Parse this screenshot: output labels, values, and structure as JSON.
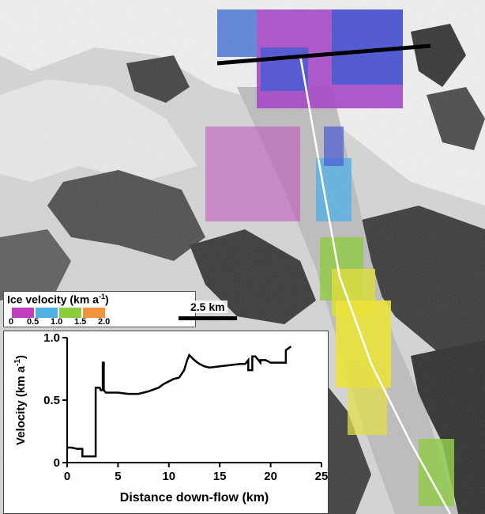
{
  "legend": {
    "title": "Ice velocity (km a",
    "title_sup": "-1",
    "title_end": ")",
    "colors": [
      "#c13fbf",
      "#4fb0e6",
      "#8dcc3b",
      "#f2933c"
    ],
    "ticks": [
      "0",
      "0.5",
      "1.0",
      "1.5",
      "2.0"
    ]
  },
  "scale_bar": {
    "label": "2.5 km"
  },
  "chart_data": {
    "type": "line",
    "xlabel": "Distance down-flow (km)",
    "ylabel": "Velocity (km a",
    "ylabel_sup": "-1",
    "ylabel_end": ")",
    "xlim": [
      0,
      25
    ],
    "ylim": [
      0,
      1.0
    ],
    "xticks": [
      0,
      5,
      10,
      15,
      20,
      25
    ],
    "yticks": [
      0,
      0.5,
      1.0
    ],
    "ytick_labels": [
      "0",
      "0.5",
      "1.0"
    ],
    "series": [
      {
        "x": [
          0,
          0.4,
          1.0,
          1.5,
          1.5,
          2.5,
          2.8,
          2.8,
          3.2,
          3.3,
          3.5,
          3.5,
          3.6,
          3.6,
          3.7,
          3.8,
          4.0,
          5.0,
          6.0,
          7.0,
          7.5,
          8.0,
          9.0,
          9.5,
          10.0,
          10.5,
          11.0,
          11.5,
          11.8,
          12.0,
          12.5,
          13.0,
          13.5,
          14.0,
          15.0,
          16.0,
          17.0,
          17.5,
          17.8,
          17.8,
          18.2,
          18.2,
          18.5,
          19.0,
          19.0,
          19.5,
          20.0,
          21.0,
          21.5,
          21.5,
          22.0
        ],
        "y": [
          0.12,
          0.12,
          0.11,
          0.11,
          0.05,
          0.05,
          0.05,
          0.6,
          0.6,
          0.58,
          0.58,
          0.8,
          0.8,
          0.58,
          0.57,
          0.56,
          0.56,
          0.56,
          0.55,
          0.55,
          0.56,
          0.57,
          0.6,
          0.63,
          0.65,
          0.67,
          0.68,
          0.74,
          0.82,
          0.86,
          0.82,
          0.79,
          0.77,
          0.76,
          0.77,
          0.78,
          0.79,
          0.79,
          0.82,
          0.74,
          0.74,
          0.85,
          0.85,
          0.8,
          0.82,
          0.82,
          0.8,
          0.8,
          0.8,
          0.9,
          0.93
        ]
      }
    ]
  }
}
